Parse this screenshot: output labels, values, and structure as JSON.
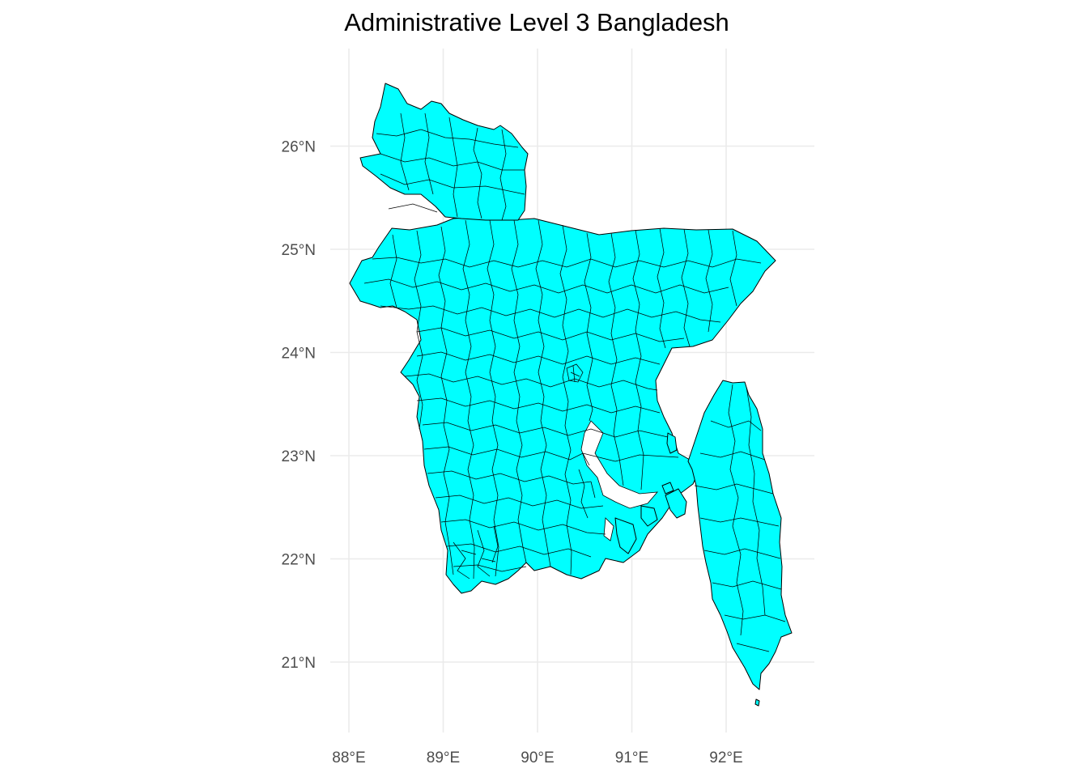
{
  "title": "Administrative Level 3 Bangladesh",
  "map": {
    "fill_color": "#00ffff",
    "border_color": "#000000",
    "grid_color": "#ebebeb",
    "lon_range": [
      87.95,
      92.85
    ],
    "lat_range": [
      20.45,
      26.78
    ],
    "lon_ticks": [
      {
        "value": 88,
        "label": "88°E"
      },
      {
        "value": 89,
        "label": "89°E"
      },
      {
        "value": 90,
        "label": "90°E"
      },
      {
        "value": 91,
        "label": "91°E"
      },
      {
        "value": 92,
        "label": "92°E"
      }
    ],
    "lat_ticks": [
      {
        "value": 21,
        "label": "21°N"
      },
      {
        "value": 22,
        "label": "22°N"
      },
      {
        "value": 23,
        "label": "23°N"
      },
      {
        "value": 24,
        "label": "24°N"
      },
      {
        "value": 25,
        "label": "25°N"
      },
      {
        "value": 26,
        "label": "26°N"
      }
    ]
  }
}
